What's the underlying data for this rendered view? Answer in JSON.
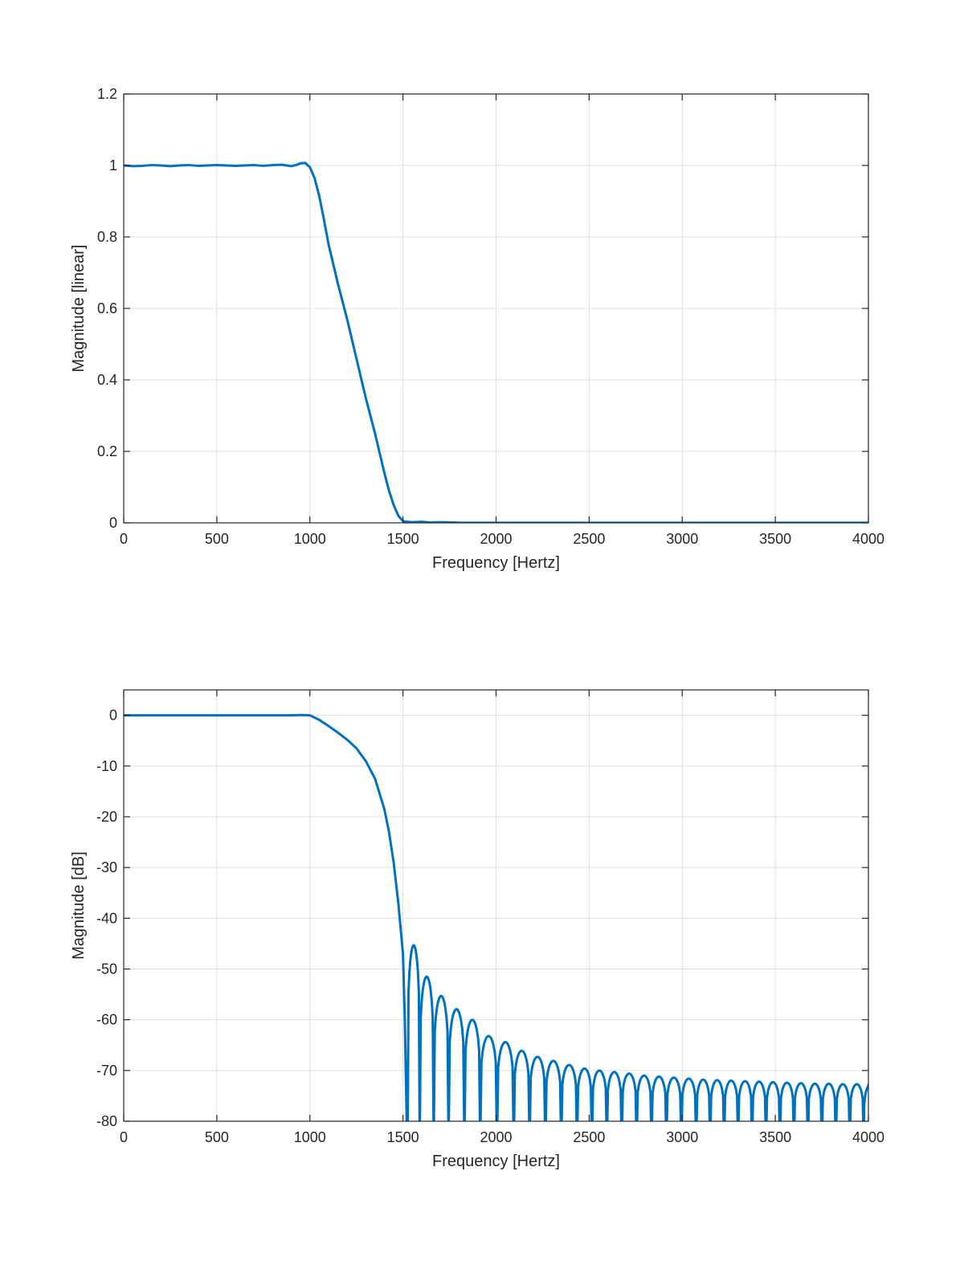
{
  "colors": {
    "series": "#0072BD",
    "grid": "#dfdfdf",
    "axis": "#262626",
    "background": "#ffffff"
  },
  "chart_data": [
    {
      "type": "line",
      "title": "",
      "xlabel": "Frequency [Hertz]",
      "ylabel": "Magnitude [linear]",
      "xlim": [
        0,
        4000
      ],
      "ylim": [
        0,
        1.2
      ],
      "xticks": [
        0,
        500,
        1000,
        1500,
        2000,
        2500,
        3000,
        3500,
        4000
      ],
      "yticks": [
        0,
        0.2,
        0.4,
        0.6,
        0.8,
        1,
        1.2
      ],
      "grid": true,
      "legend": "none",
      "series": [
        {
          "x": [
            0,
            50,
            100,
            150,
            200,
            250,
            300,
            350,
            400,
            450,
            500,
            550,
            600,
            650,
            700,
            750,
            800,
            850,
            900,
            925,
            950,
            975,
            1000,
            1025,
            1050,
            1075,
            1100,
            1150,
            1200,
            1250,
            1300,
            1350,
            1400,
            1425,
            1450,
            1475,
            1500,
            1520,
            1550,
            1600,
            1650,
            1700,
            1800,
            2000,
            2500,
            3000,
            3500,
            4000
          ],
          "values": [
            1.0,
            0.998,
            0.999,
            1.001,
            1.0,
            0.998,
            1.0,
            1.001,
            0.999,
            1.0,
            1.001,
            1.0,
            0.999,
            1.0,
            1.001,
            0.999,
            1.001,
            1.002,
            0.998,
            1.001,
            1.006,
            1.007,
            0.995,
            0.965,
            0.915,
            0.85,
            0.78,
            0.67,
            0.57,
            0.46,
            0.35,
            0.25,
            0.14,
            0.09,
            0.05,
            0.02,
            0.005,
            0.003,
            0.002,
            0.003,
            0.001,
            0.002,
            0.0005,
            0.0003,
            0.0002,
            0.0002,
            0.0002,
            0.0002
          ]
        }
      ]
    },
    {
      "type": "line",
      "title": "",
      "xlabel": "Frequency [Hertz]",
      "ylabel": "Magnitude [dB]",
      "xlim": [
        0,
        4000
      ],
      "ylim": [
        -80,
        5
      ],
      "xticks": [
        0,
        500,
        1000,
        1500,
        2000,
        2500,
        3000,
        3500,
        4000
      ],
      "yticks": [
        0,
        -10,
        -20,
        -30,
        -40,
        -50,
        -60,
        -70,
        -80
      ],
      "grid": true,
      "legend": "none",
      "series": [
        {
          "passband": {
            "x": [
              0,
              900,
              950,
              1000,
              1050,
              1100,
              1150,
              1200,
              1250,
              1300,
              1350,
              1400,
              1425,
              1450,
              1475,
              1500,
              1510,
              1520
            ],
            "values": [
              0,
              0,
              0.05,
              0,
              -0.9,
              -2.1,
              -3.4,
              -4.8,
              -6.5,
              -9.0,
              -12.5,
              -18.5,
              -23.0,
              -29.0,
              -37.0,
              -47.0,
              -60.0,
              -80.0
            ]
          },
          "sidelobes": {
            "nulls": [
              1525,
              1590,
              1665,
              1745,
              1830,
              1915,
              2005,
              2095,
              2180,
              2265,
              2350,
              2435,
              2515,
              2595,
              2675,
              2755,
              2835,
              2915,
              2995,
              3075,
              3150,
              3225,
              3300,
              3375,
              3450,
              3525,
              3600,
              3675,
              3750,
              3825,
              3900,
              3975
            ],
            "peaks": [
              -45.3,
              -51.5,
              -55.3,
              -57.9,
              -60.0,
              -63.2,
              -64.4,
              -66.1,
              -67.3,
              -68.1,
              -68.9,
              -69.6,
              -70.0,
              -70.3,
              -70.6,
              -71.0,
              -71.2,
              -71.4,
              -71.6,
              -71.8,
              -71.9,
              -72.0,
              -72.1,
              -72.2,
              -72.3,
              -72.4,
              -72.5,
              -72.6,
              -72.6,
              -72.7,
              -72.7,
              -72.7
            ],
            "end_value": -72.8
          }
        }
      ]
    }
  ]
}
